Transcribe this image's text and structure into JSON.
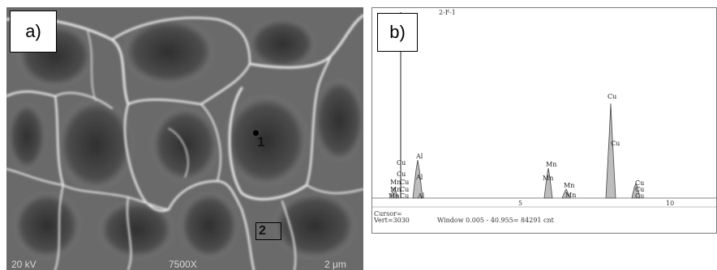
{
  "panel_a": {
    "label": "a)",
    "point1_label": "1",
    "point2_label": "2",
    "footer": {
      "voltage": "20 kV",
      "magnification": "7500X",
      "scale": "2 μm"
    }
  },
  "panel_b": {
    "label": "b)",
    "header_fragment": "2-F-1",
    "cursor_text": "Cursor=",
    "vert_text": "Vert=3030",
    "window_text": "Window 0.005 - 40.955=   84291 cnt",
    "axis_ticks": [
      "5",
      "10"
    ],
    "peak_labels": {
      "cu_left_top": "Cu",
      "cu_left_mid": "Cu",
      "mn_left_1": "Mn",
      "cu_left_2": "Cu",
      "mn_left_2": "Mn",
      "cu_left_3": "Cu",
      "mn_left_3": "Mn",
      "cu_left_4": "Cu",
      "al_1": "Al",
      "al_2": "Al",
      "al_3": "Al",
      "mn_mid_1": "Mn",
      "mn_mid_2": "Mn",
      "mn_small_1": "Mn",
      "mn_small_2": "Mn",
      "cu_main_1": "Cu",
      "cu_main_2": "Cu",
      "cu_right_1": "Cu",
      "cu_right_2": "Cu",
      "cu_right_3": "Cu"
    }
  },
  "colors": {
    "sem_dark": "#3c3c3c",
    "sem_light": "#e8e8e8",
    "peak_fill": "#bdbdbd"
  }
}
